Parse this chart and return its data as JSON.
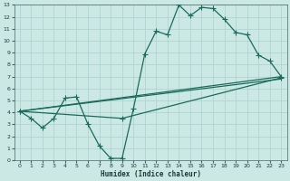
{
  "bg_color": "#cce8e5",
  "grid_color": "#afd4d0",
  "line_color": "#1a6b5a",
  "xlim": [
    -0.5,
    23.5
  ],
  "ylim": [
    0,
    13
  ],
  "xticks": [
    0,
    1,
    2,
    3,
    4,
    5,
    6,
    7,
    8,
    9,
    10,
    11,
    12,
    13,
    14,
    15,
    16,
    17,
    18,
    19,
    20,
    21,
    22,
    23
  ],
  "yticks": [
    0,
    1,
    2,
    3,
    4,
    5,
    6,
    7,
    8,
    9,
    10,
    11,
    12,
    13
  ],
  "xlabel": "Humidex (Indice chaleur)",
  "curve1_x": [
    0,
    1,
    2,
    3,
    4,
    5,
    6,
    7,
    8,
    9,
    10,
    11,
    12,
    13,
    14,
    15,
    16,
    17,
    18,
    19,
    20,
    21,
    22,
    23
  ],
  "curve1_y": [
    4.1,
    3.5,
    2.7,
    3.5,
    5.2,
    5.3,
    3.0,
    1.2,
    0.15,
    0.15,
    4.3,
    8.9,
    10.8,
    10.5,
    13.0,
    12.1,
    12.8,
    12.7,
    11.8,
    10.7,
    10.5,
    8.8,
    8.3,
    7.0
  ],
  "line1_x": [
    0,
    23
  ],
  "line1_y": [
    4.1,
    6.8
  ],
  "line2_x": [
    0,
    9,
    23
  ],
  "line2_y": [
    4.1,
    3.5,
    6.9
  ],
  "line3_x": [
    0,
    23
  ],
  "line3_y": [
    4.1,
    7.0
  ]
}
